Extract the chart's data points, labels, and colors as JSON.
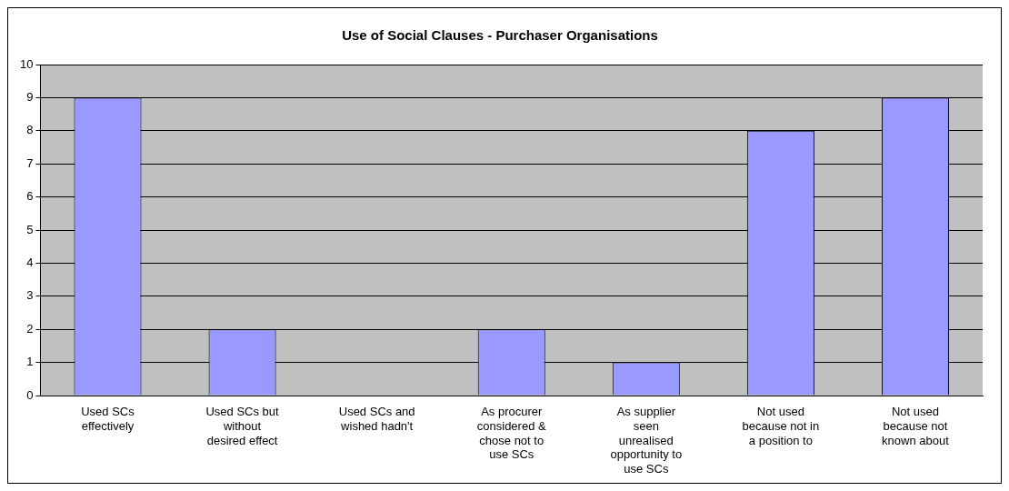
{
  "chart_data": {
    "type": "bar",
    "title": "Use of Social Clauses - Purchaser Organisations",
    "categories": [
      "Used SCs effectively",
      "Used SCs but without desired effect",
      "Used SCs and wished hadn't",
      "As procurer considered & chose not to use SCs",
      "As supplier seen unrealised opportunity to use SCs",
      "Not used because not in a position to",
      "Not used because not known about"
    ],
    "values": [
      9,
      2,
      0,
      2,
      1,
      8,
      9
    ],
    "color": "#9999ff",
    "ylim": [
      0,
      10
    ],
    "yticks": [
      0,
      1,
      2,
      3,
      4,
      5,
      6,
      7,
      8,
      9,
      10
    ],
    "grid": "y",
    "legend": false
  }
}
